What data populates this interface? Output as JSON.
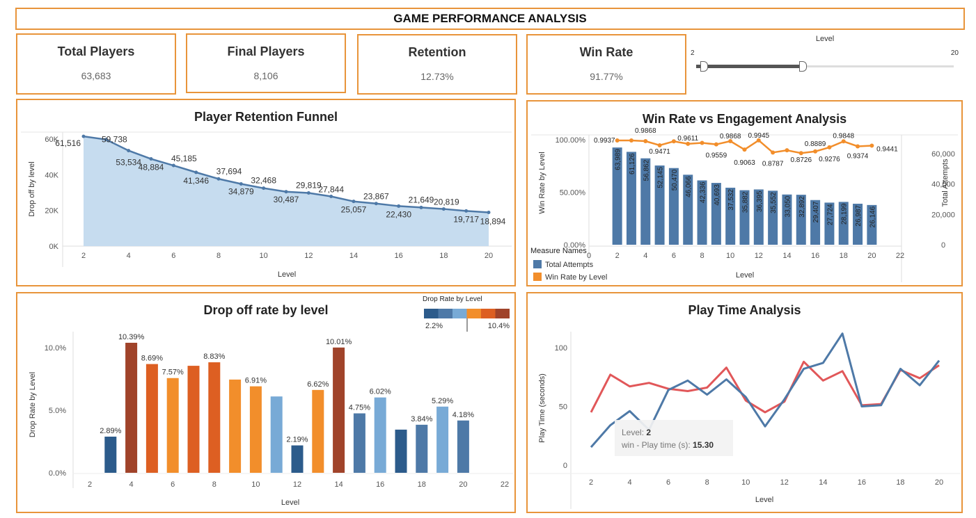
{
  "dashboard": {
    "title": "GAME PERFORMANCE ANALYSIS"
  },
  "kpis": {
    "total_players": {
      "label": "Total Players",
      "value": "63,683"
    },
    "final_players": {
      "label": "Final Players",
      "value": "8,106"
    },
    "retention": {
      "label": "Retention",
      "value": "12.73%"
    },
    "win_rate": {
      "label": "Win Rate",
      "value": "91.77%"
    }
  },
  "level_filter": {
    "title": "Level",
    "min": "2",
    "max": "20",
    "selected_min": 2,
    "selected_max": 10
  },
  "colors": {
    "accent": "#e8943a",
    "blue": "#4e79a7",
    "orange": "#f28e2b",
    "red": "#e15759",
    "area": "#c6dcef"
  },
  "panels": {
    "funnel": {
      "title": "Player Retention Funnel"
    },
    "winrate": {
      "title": "Win Rate vs Engagement Analysis"
    },
    "dropoff": {
      "title": "Drop off rate by level"
    },
    "playtime": {
      "title": "Play Time Analysis"
    }
  },
  "drop_legend": {
    "title": "Drop Rate by Level",
    "min": "2.2%",
    "max": "10.4%",
    "swatches": [
      "#2c5b8b",
      "#4e79a7",
      "#78aad6",
      "#f28e2b",
      "#dd5f22",
      "#a0432a"
    ]
  },
  "tooltip": {
    "level_label": "Level:",
    "level_value": "2",
    "metric_label": "win - Play time (s):",
    "metric_value": "15.30"
  },
  "chart_data": [
    {
      "id": "funnel",
      "type": "area",
      "title": "Player Retention Funnel",
      "xlabel": "Level",
      "ylabel": "Drop off by level",
      "x_ticks": [
        "2",
        "4",
        "6",
        "8",
        "10",
        "12",
        "14",
        "16",
        "18",
        "20"
      ],
      "y_ticks": [
        "0K",
        "20K",
        "40K",
        "60K"
      ],
      "ylim": [
        0,
        63000
      ],
      "x": [
        2,
        3,
        4,
        5,
        6,
        7,
        8,
        9,
        10,
        11,
        12,
        13,
        14,
        15,
        16,
        17,
        18,
        19,
        20
      ],
      "values": [
        61516,
        59738,
        53534,
        48884,
        45185,
        41346,
        37694,
        34879,
        32468,
        30487,
        29819,
        27844,
        25057,
        23867,
        22430,
        21649,
        20819,
        19717,
        18894
      ],
      "labels": [
        "61,516",
        "59,738",
        "53,534",
        "48,884",
        "45,185",
        "41,346",
        "37,694",
        "34,879",
        "32,468",
        "30,487",
        "29,819",
        "27,844",
        "25,057",
        "23,867",
        "22,430",
        "21,649",
        "20,819",
        "19,717",
        "18,894"
      ]
    },
    {
      "id": "winrate",
      "type": "bar",
      "title": "Win Rate vs Engagement Analysis",
      "xlabel": "Level",
      "ylabel_left": "Win Rate by Level",
      "ylabel_right": "Total Attempts",
      "left_ticks": [
        "0.00%",
        "50.00%",
        "100.00%"
      ],
      "right_ticks": [
        "0",
        "20,000",
        "40,000",
        "60,000"
      ],
      "x_ticks": [
        "0",
        "2",
        "4",
        "6",
        "8",
        "10",
        "12",
        "14",
        "16",
        "18",
        "20",
        "22"
      ],
      "legend_title": "Measure Names",
      "legend": [
        "Total Attempts",
        "Win Rate by Level"
      ],
      "x": [
        2,
        3,
        4,
        5,
        6,
        7,
        8,
        9,
        10,
        11,
        12,
        13,
        14,
        15,
        16,
        17,
        18,
        19,
        20
      ],
      "series": [
        {
          "name": "Total Attempts",
          "values": [
            63989,
            61126,
            56862,
            52145,
            50470,
            46066,
            42336,
            40693,
            37532,
            35882,
            36395,
            35552,
            33050,
            32892,
            29407,
            27724,
            28199,
            26987,
            26146
          ],
          "labels": [
            "63,989",
            "61,126",
            "56,862",
            "52,145",
            "50,470",
            "46,066",
            "42,336",
            "40,693",
            "37,532",
            "35,882",
            "36,395",
            "35,552",
            "33,050",
            "32,892",
            "29,407",
            "27,724",
            "28,199",
            "26,987",
            "26,146"
          ]
        },
        {
          "name": "Win Rate by Level",
          "values": [
            0.9937,
            0.993,
            0.9868,
            0.9471,
            0.985,
            0.9611,
            0.97,
            0.9559,
            0.9868,
            0.9063,
            0.9945,
            0.8787,
            0.9,
            0.8726,
            0.8889,
            0.9276,
            0.9848,
            0.9374,
            0.9441
          ],
          "labels": [
            "0.9937",
            "",
            "0.9868",
            "0.9471",
            "",
            "0.9611",
            "",
            "0.9559",
            "0.9868",
            "0.9063",
            "0.9945",
            "0.8787",
            "",
            "0.8726",
            "0.8889",
            "0.9276",
            "0.9848",
            "0.9374",
            "0.9441"
          ]
        }
      ]
    },
    {
      "id": "dropoff",
      "type": "bar",
      "title": "Drop off rate by level",
      "xlabel": "Level",
      "ylabel": "Drop Rate by Level",
      "y_ticks": [
        "0.0%",
        "5.0%",
        "10.0%"
      ],
      "x_ticks": [
        "2",
        "4",
        "6",
        "8",
        "10",
        "12",
        "14",
        "16",
        "18",
        "20",
        "22"
      ],
      "x": [
        3,
        4,
        5,
        6,
        7,
        8,
        9,
        10,
        11,
        12,
        13,
        14,
        15,
        16,
        17,
        18,
        19,
        20
      ],
      "values": [
        2.89,
        10.39,
        8.69,
        7.57,
        8.55,
        8.83,
        7.45,
        6.91,
        6.1,
        2.19,
        6.62,
        10.01,
        4.75,
        6.02,
        3.45,
        3.84,
        5.29,
        4.18
      ],
      "labels": [
        "2.89%",
        "10.39%",
        "8.69%",
        "7.57%",
        "",
        "8.83%",
        "",
        "6.91%",
        "",
        "2.19%",
        "6.62%",
        "10.01%",
        "4.75%",
        "6.02%",
        "",
        "3.84%",
        "5.29%",
        "4.18%"
      ]
    },
    {
      "id": "playtime",
      "type": "line",
      "title": "Play Time Analysis",
      "xlabel": "Level",
      "ylabel": "Play Time (seconds)",
      "y_ticks": [
        "0",
        "50",
        "100"
      ],
      "x_ticks": [
        "2",
        "4",
        "6",
        "8",
        "10",
        "12",
        "14",
        "16",
        "18",
        "20"
      ],
      "x": [
        2,
        3,
        4,
        5,
        6,
        7,
        8,
        9,
        10,
        11,
        12,
        13,
        14,
        15,
        16,
        17,
        18,
        19,
        20
      ],
      "series": [
        {
          "name": "win",
          "values": [
            15.3,
            34,
            46,
            30,
            64,
            72,
            60,
            73,
            58,
            33,
            56,
            82,
            87,
            112,
            50,
            51,
            82,
            68,
            89
          ]
        },
        {
          "name": "lose",
          "values": [
            45,
            77,
            67,
            70,
            65,
            63,
            66,
            83,
            55,
            45,
            54,
            88,
            72,
            80,
            51,
            52,
            81,
            74,
            85
          ]
        }
      ]
    }
  ]
}
